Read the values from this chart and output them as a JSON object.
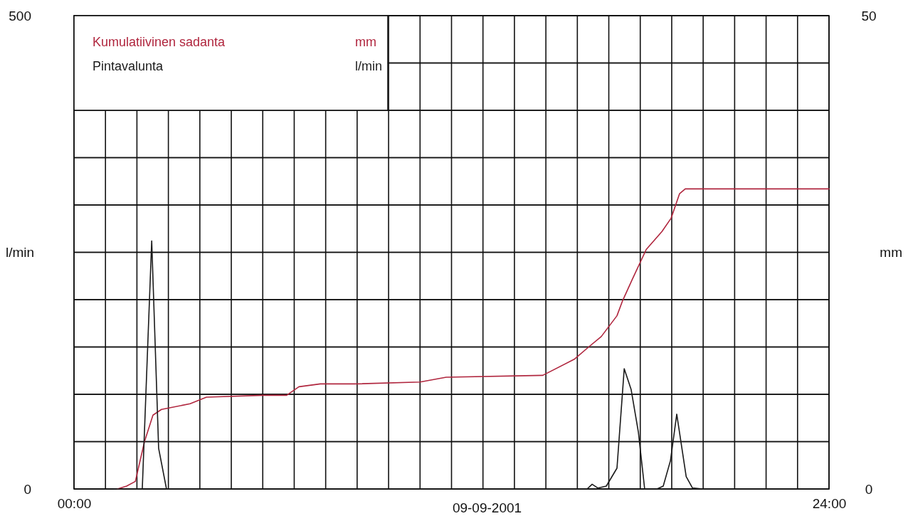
{
  "chart_data": {
    "type": "line",
    "xlabel": "09-09-2001",
    "ylabel": "l/min",
    "y2label": "mm",
    "xlim": [
      0,
      24
    ],
    "xticks": [
      {
        "value": 0,
        "label": "00:00"
      },
      {
        "value": 1,
        "label": null
      },
      {
        "value": 2,
        "label": null
      },
      {
        "value": 3,
        "label": null
      },
      {
        "value": 4,
        "label": null
      },
      {
        "value": 5,
        "label": null
      },
      {
        "value": 6,
        "label": null
      },
      {
        "value": 7,
        "label": null
      },
      {
        "value": 8,
        "label": null
      },
      {
        "value": 9,
        "label": null
      },
      {
        "value": 10,
        "label": null
      },
      {
        "value": 11,
        "label": null
      },
      {
        "value": 12,
        "label": null
      },
      {
        "value": 13,
        "label": null
      },
      {
        "value": 14,
        "label": null
      },
      {
        "value": 15,
        "label": null
      },
      {
        "value": 16,
        "label": null
      },
      {
        "value": 17,
        "label": null
      },
      {
        "value": 18,
        "label": null
      },
      {
        "value": 19,
        "label": null
      },
      {
        "value": 20,
        "label": null
      },
      {
        "value": 21,
        "label": null
      },
      {
        "value": 22,
        "label": null
      },
      {
        "value": 23,
        "label": null
      },
      {
        "value": 24,
        "label": "24:00"
      }
    ],
    "ylim": [
      0,
      500
    ],
    "yticks": [
      0,
      {
        "value": 50,
        "label": null
      },
      {
        "value": 100,
        "label": null
      },
      {
        "value": 150,
        "label": null
      },
      {
        "value": 200,
        "label": null
      },
      {
        "value": 250,
        "label": null
      },
      {
        "value": 300,
        "label": null
      },
      {
        "value": 350,
        "label": null
      },
      {
        "value": 400,
        "label": null
      },
      {
        "value": 450,
        "label": null
      },
      500
    ],
    "y2lim": [
      0,
      50
    ],
    "y2ticks": [
      0,
      {
        "value": 5,
        "label": null
      },
      {
        "value": 10,
        "label": null
      },
      {
        "value": 15,
        "label": null
      },
      {
        "value": 20,
        "label": null
      },
      {
        "value": 25,
        "label": null
      },
      {
        "value": 30,
        "label": null
      },
      {
        "value": 35,
        "label": null
      },
      {
        "value": 40,
        "label": null
      },
      {
        "value": 45,
        "label": null
      },
      50
    ],
    "grid": true,
    "legend": "top left",
    "annotations": [
      "mm",
      "l/min"
    ],
    "line_style": "solid",
    "marker": "none",
    "series": [
      {
        "name": "Kumulatiivinen sadanta",
        "color": "#b0263e",
        "axis": "y2",
        "x": [
          1.38,
          1.67,
          1.95,
          2.24,
          2.51,
          2.78,
          3.69,
          4.21,
          6.02,
          6.76,
          7.15,
          7.83,
          8.96,
          11.0,
          11.83,
          14.9,
          15.9,
          16.36,
          16.76,
          17.26,
          17.44,
          17.74,
          18.19,
          18.69,
          18.98,
          19.25,
          19.43,
          24
        ],
        "values": [
          0,
          0.3,
          0.8,
          5.0,
          7.8,
          8.4,
          9.0,
          9.7,
          9.9,
          9.9,
          10.8,
          11.1,
          11.1,
          11.3,
          11.8,
          12.0,
          13.7,
          15.0,
          16.1,
          18.3,
          19.9,
          22.1,
          25.3,
          27.2,
          28.6,
          31.2,
          31.7,
          31.7
        ]
      },
      {
        "name": "Pintavalunta",
        "color": "#1a1a1a",
        "x": [
          1.27,
          2.17,
          2.47,
          2.69,
          2.94,
          3.19,
          16.31,
          16.47,
          16.65,
          16.92,
          17.26,
          17.49,
          17.71,
          17.94,
          18.14,
          18.53,
          18.73,
          18.96,
          19.16,
          19.46,
          19.66,
          19.98,
          24
        ],
        "values": [
          0,
          0,
          262,
          43,
          0,
          0,
          0,
          5,
          1,
          3,
          22,
          127,
          105,
          60,
          0,
          0,
          3,
          30,
          79,
          13,
          1,
          0,
          0
        ]
      }
    ]
  }
}
